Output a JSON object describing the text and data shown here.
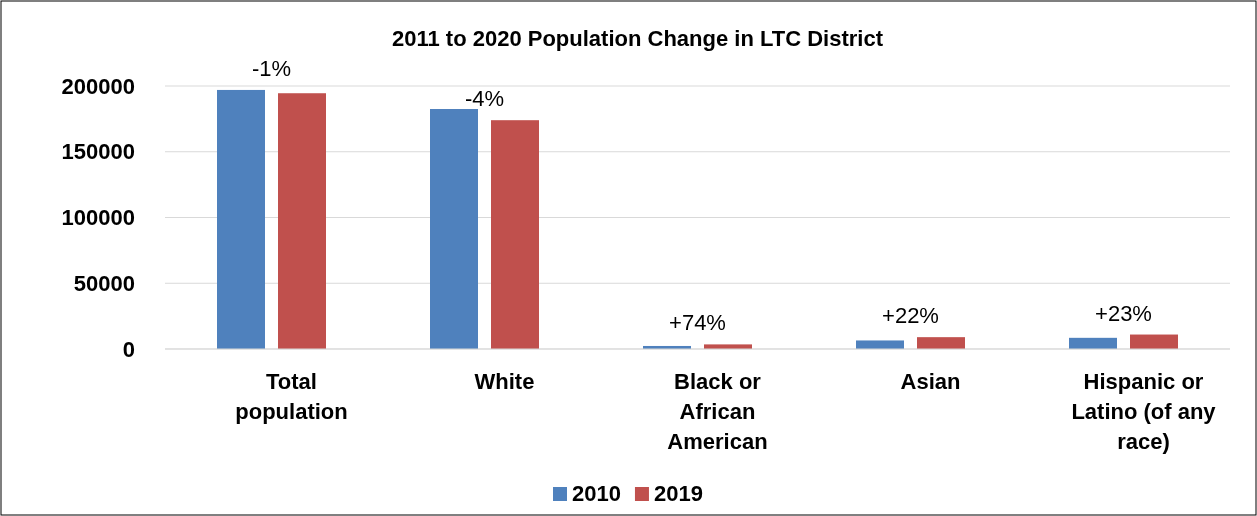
{
  "chart_data": {
    "type": "bar",
    "title": "2011 to 2020 Population Change in LTC District",
    "categories": [
      "Total population",
      "White",
      "Black or African American",
      "Asian",
      "Hispanic or Latino (of any race)"
    ],
    "series": [
      {
        "name": "2010",
        "color": "#4f81bd",
        "values": [
          197000,
          182500,
          2300,
          6500,
          8500
        ]
      },
      {
        "name": "2019",
        "color": "#c0504d",
        "values": [
          194500,
          174000,
          3500,
          9000,
          11000
        ]
      }
    ],
    "ylim": [
      0,
      200000
    ],
    "yticks": [
      0,
      50000,
      100000,
      150000,
      200000
    ],
    "grid": "y",
    "legend": "bottom",
    "annotations": [
      {
        "text": "-1%",
        "x": "Total population",
        "y": 197000
      },
      {
        "text": "-4%",
        "x": "White",
        "y": 174000
      },
      {
        "text": "+74%",
        "x": "Black or African American",
        "y": 3500
      },
      {
        "text": "+22%",
        "x": "Asian",
        "y": 9000
      },
      {
        "text": "+23%",
        "x": "Hispanic or Latino (of any race)",
        "y": 11000
      }
    ]
  }
}
